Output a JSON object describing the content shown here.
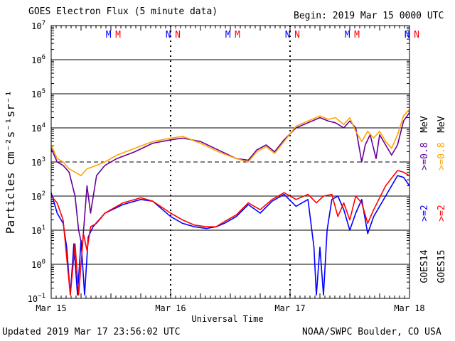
{
  "header": {
    "title": "GOES Electron Flux (5 minute data)",
    "begin": "Begin: 2019 Mar 15 0000 UTC"
  },
  "footer": {
    "updated": "Updated 2019 Mar 17 23:56:02 UTC",
    "source": "NOAA/SWPC Boulder, CO USA"
  },
  "colors": {
    "goes14_ge2": "#0000ff",
    "goes15_ge2": "#ff0000",
    "goes14_ge08": "#660099",
    "goes15_ge08": "#ffa500"
  },
  "markers": [
    {
      "day": 0.48,
      "text": "M",
      "color": "#0000ff"
    },
    {
      "day": 0.56,
      "text": "M",
      "color": "#ff0000"
    },
    {
      "day": 0.98,
      "text": "N",
      "color": "#0000ff"
    },
    {
      "day": 1.06,
      "text": "N",
      "color": "#ff0000"
    },
    {
      "day": 1.48,
      "text": "M",
      "color": "#0000ff"
    },
    {
      "day": 1.56,
      "text": "M",
      "color": "#ff0000"
    },
    {
      "day": 1.98,
      "text": "N",
      "color": "#0000ff"
    },
    {
      "day": 2.06,
      "text": "N",
      "color": "#ff0000"
    },
    {
      "day": 2.48,
      "text": "M",
      "color": "#0000ff"
    },
    {
      "day": 2.56,
      "text": "M",
      "color": "#ff0000"
    },
    {
      "day": 2.98,
      "text": "N",
      "color": "#0000ff"
    },
    {
      "day": 3.06,
      "text": "N",
      "color": "#ff0000"
    }
  ],
  "chart_data": {
    "type": "line",
    "title": "GOES Electron Flux (5 minute data)",
    "xlabel": "Universal Time",
    "ylabel": "Particles cm⁻²s⁻¹sr⁻¹",
    "yscale": "log",
    "ylim_exp": [
      -1,
      7
    ],
    "xlim_days": [
      0,
      3
    ],
    "x_tick_labels": [
      "Mar 15",
      "Mar 16",
      "Mar 17",
      "Mar 18"
    ],
    "y_tick_exponents": [
      -1,
      0,
      1,
      2,
      3,
      4,
      5,
      6,
      7
    ],
    "threshold_exp": 3,
    "right_labels": {
      "goes14": "GOES14",
      "goes15": "GOES15",
      "ge2_a": ">=2",
      "ge2_b": ">=2",
      "ge08_a": ">=0.8",
      "ge08_b": ">=0.8",
      "unit": "MeV"
    },
    "series": [
      {
        "name": "GOES14 >=0.8 MeV",
        "color": "#660099",
        "points": [
          [
            0,
            3.4
          ],
          [
            0.05,
            3.0
          ],
          [
            0.1,
            2.9
          ],
          [
            0.15,
            2.7
          ],
          [
            0.2,
            2.0
          ],
          [
            0.23,
            1.0
          ],
          [
            0.26,
            0.5
          ],
          [
            0.3,
            2.3
          ],
          [
            0.33,
            1.5
          ],
          [
            0.38,
            2.6
          ],
          [
            0.45,
            2.9
          ],
          [
            0.55,
            3.1
          ],
          [
            0.7,
            3.3
          ],
          [
            0.85,
            3.55
          ],
          [
            1.0,
            3.65
          ],
          [
            1.1,
            3.7
          ],
          [
            1.25,
            3.6
          ],
          [
            1.4,
            3.35
          ],
          [
            1.55,
            3.1
          ],
          [
            1.65,
            3.05
          ],
          [
            1.72,
            3.35
          ],
          [
            1.8,
            3.5
          ],
          [
            1.87,
            3.3
          ],
          [
            1.95,
            3.65
          ],
          [
            2.05,
            4.0
          ],
          [
            2.15,
            4.15
          ],
          [
            2.25,
            4.3
          ],
          [
            2.32,
            4.2
          ],
          [
            2.38,
            4.15
          ],
          [
            2.45,
            4.0
          ],
          [
            2.5,
            4.2
          ],
          [
            2.55,
            4.0
          ],
          [
            2.6,
            3.0
          ],
          [
            2.63,
            3.5
          ],
          [
            2.67,
            3.8
          ],
          [
            2.72,
            3.1
          ],
          [
            2.75,
            3.8
          ],
          [
            2.8,
            3.5
          ],
          [
            2.85,
            3.2
          ],
          [
            2.9,
            3.5
          ],
          [
            2.95,
            4.2
          ],
          [
            3.0,
            4.45
          ]
        ]
      },
      {
        "name": "GOES15 >=0.8 MeV",
        "color": "#ffa500",
        "points": [
          [
            0,
            3.5
          ],
          [
            0.05,
            3.1
          ],
          [
            0.1,
            3.0
          ],
          [
            0.15,
            2.8
          ],
          [
            0.2,
            2.7
          ],
          [
            0.25,
            2.6
          ],
          [
            0.3,
            2.8
          ],
          [
            0.38,
            2.9
          ],
          [
            0.45,
            3.0
          ],
          [
            0.55,
            3.2
          ],
          [
            0.7,
            3.4
          ],
          [
            0.85,
            3.6
          ],
          [
            1.0,
            3.7
          ],
          [
            1.1,
            3.75
          ],
          [
            1.25,
            3.55
          ],
          [
            1.4,
            3.3
          ],
          [
            1.55,
            3.1
          ],
          [
            1.65,
            3.0
          ],
          [
            1.72,
            3.3
          ],
          [
            1.8,
            3.45
          ],
          [
            1.87,
            3.25
          ],
          [
            1.95,
            3.6
          ],
          [
            2.05,
            4.05
          ],
          [
            2.15,
            4.2
          ],
          [
            2.25,
            4.35
          ],
          [
            2.32,
            4.25
          ],
          [
            2.38,
            4.3
          ],
          [
            2.45,
            4.1
          ],
          [
            2.5,
            4.3
          ],
          [
            2.55,
            3.9
          ],
          [
            2.6,
            3.6
          ],
          [
            2.65,
            3.9
          ],
          [
            2.7,
            3.7
          ],
          [
            2.75,
            3.9
          ],
          [
            2.8,
            3.6
          ],
          [
            2.85,
            3.4
          ],
          [
            2.9,
            3.8
          ],
          [
            2.95,
            4.35
          ],
          [
            3.0,
            4.55
          ]
        ]
      },
      {
        "name": "GOES14 >=2 MeV",
        "color": "#0000ff",
        "points": [
          [
            0,
            2.1
          ],
          [
            0.05,
            1.5
          ],
          [
            0.1,
            1.2
          ],
          [
            0.13,
            0.5
          ],
          [
            0.16,
            -0.9
          ],
          [
            0.19,
            0.6
          ],
          [
            0.22,
            -0.9
          ],
          [
            0.25,
            0.7
          ],
          [
            0.28,
            -0.9
          ],
          [
            0.31,
            0.8
          ],
          [
            0.35,
            1.1
          ],
          [
            0.45,
            1.5
          ],
          [
            0.6,
            1.75
          ],
          [
            0.75,
            1.9
          ],
          [
            0.85,
            1.85
          ],
          [
            1.0,
            1.4
          ],
          [
            1.1,
            1.2
          ],
          [
            1.2,
            1.1
          ],
          [
            1.3,
            1.05
          ],
          [
            1.38,
            1.1
          ],
          [
            1.45,
            1.2
          ],
          [
            1.55,
            1.4
          ],
          [
            1.65,
            1.75
          ],
          [
            1.75,
            1.5
          ],
          [
            1.85,
            1.85
          ],
          [
            1.95,
            2.05
          ],
          [
            2.05,
            1.7
          ],
          [
            2.15,
            1.9
          ],
          [
            2.2,
            0.5
          ],
          [
            2.22,
            -0.9
          ],
          [
            2.25,
            0.5
          ],
          [
            2.28,
            -0.9
          ],
          [
            2.31,
            1.0
          ],
          [
            2.35,
            1.9
          ],
          [
            2.4,
            2.0
          ],
          [
            2.45,
            1.6
          ],
          [
            2.5,
            1.0
          ],
          [
            2.55,
            1.5
          ],
          [
            2.6,
            1.9
          ],
          [
            2.65,
            0.9
          ],
          [
            2.7,
            1.4
          ],
          [
            2.8,
            2.0
          ],
          [
            2.9,
            2.6
          ],
          [
            2.95,
            2.55
          ],
          [
            3.0,
            2.3
          ]
        ]
      },
      {
        "name": "GOES15 >=2 MeV",
        "color": "#ff0000",
        "points": [
          [
            0,
            2.0
          ],
          [
            0.05,
            1.8
          ],
          [
            0.1,
            1.3
          ],
          [
            0.13,
            0.2
          ],
          [
            0.16,
            -0.9
          ],
          [
            0.2,
            0.6
          ],
          [
            0.23,
            -0.9
          ],
          [
            0.27,
            0.9
          ],
          [
            0.3,
            0.4
          ],
          [
            0.33,
            1.1
          ],
          [
            0.38,
            1.2
          ],
          [
            0.45,
            1.5
          ],
          [
            0.6,
            1.8
          ],
          [
            0.75,
            1.95
          ],
          [
            0.85,
            1.85
          ],
          [
            1.0,
            1.5
          ],
          [
            1.1,
            1.3
          ],
          [
            1.2,
            1.15
          ],
          [
            1.3,
            1.1
          ],
          [
            1.38,
            1.1
          ],
          [
            1.45,
            1.25
          ],
          [
            1.55,
            1.45
          ],
          [
            1.65,
            1.8
          ],
          [
            1.75,
            1.6
          ],
          [
            1.85,
            1.9
          ],
          [
            1.95,
            2.1
          ],
          [
            2.05,
            1.9
          ],
          [
            2.15,
            2.05
          ],
          [
            2.22,
            1.8
          ],
          [
            2.28,
            2.0
          ],
          [
            2.35,
            2.05
          ],
          [
            2.4,
            1.4
          ],
          [
            2.45,
            1.8
          ],
          [
            2.5,
            1.3
          ],
          [
            2.55,
            2.0
          ],
          [
            2.6,
            1.8
          ],
          [
            2.65,
            1.2
          ],
          [
            2.7,
            1.6
          ],
          [
            2.8,
            2.3
          ],
          [
            2.9,
            2.75
          ],
          [
            2.95,
            2.7
          ],
          [
            3.0,
            2.6
          ]
        ]
      }
    ]
  }
}
